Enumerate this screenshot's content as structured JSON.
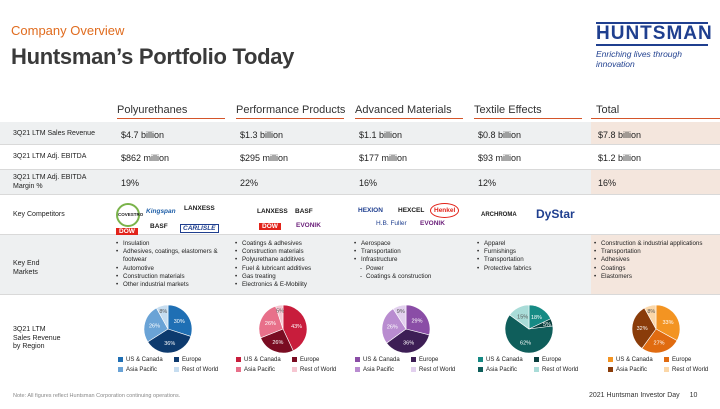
{
  "header": {
    "kicker": "Company Overview",
    "title": "Huntsman’s Portfolio Today"
  },
  "logo": {
    "word": "HUNTSMAN",
    "tagline": "Enriching lives through innovation"
  },
  "columns": [
    "Polyurethanes",
    "Performance Products",
    "Advanced Materials",
    "Textile Effects",
    "Total"
  ],
  "rows": {
    "sales": {
      "label": "3Q21 LTM Sales Revenue",
      "values": [
        "$4.7 billion",
        "$1.3 billion",
        "$1.1 billion",
        "$0.8 billion",
        "$7.8 billion"
      ]
    },
    "ebitda": {
      "label": "3Q21 LTM Adj. EBITDA",
      "values": [
        "$862 million",
        "$295 million",
        "$177 million",
        "$93 million",
        "$1.2 billion"
      ]
    },
    "margin": {
      "label1": "3Q21 LTM Adj. EBITDA",
      "label2": "Margin %",
      "values": [
        "19%",
        "22%",
        "16%",
        "12%",
        "16%"
      ]
    },
    "competitors": {
      "label": "Key Competitors"
    },
    "markets": {
      "label1": "Key End",
      "label2": "Markets"
    },
    "region": {
      "label1": "3Q21 LTM",
      "label2": "Sales Revenue",
      "label3": "by Region"
    }
  },
  "competitors": {
    "pu": [
      "COVESTRO",
      "Kingspan",
      "LANXESS",
      "BASF",
      "DOW",
      "CARLISLE"
    ],
    "pp": [
      "LANXESS",
      "BASF",
      "DOW",
      "EVONIK"
    ],
    "am": [
      "HEXION",
      "HEXCEL",
      "Henkel",
      "H.B. Fuller",
      "EVONIK"
    ],
    "te": [
      "ARCHROMA",
      "DyStar"
    ]
  },
  "markets": {
    "pu": [
      "Insulation",
      "Adhesives, coatings, elastomers & footwear",
      "Automotive",
      "Construction materials",
      "Other industrial markets"
    ],
    "pp": [
      "Coatings & adhesives",
      "Construction materials",
      "Polyurethane additives",
      "Fuel & lubricant additives",
      "Gas treating",
      "Electronics & E-Mobility"
    ],
    "am": [
      "Aerospace",
      "Transportation",
      "Infrastructure"
    ],
    "am_sub": [
      "Power",
      "Coatings & construction"
    ],
    "te": [
      "Apparel",
      "Furnishings",
      "Transportation",
      "Protective fabrics"
    ],
    "total": [
      "Construction & industrial applications",
      "Transportation",
      "Adhesives",
      "Coatings",
      "Elastomers"
    ]
  },
  "legend": [
    "US & Canada",
    "Europe",
    "Asia Pacific",
    "Rest of World"
  ],
  "chart_data": [
    {
      "type": "pie",
      "segment": "Polyurethanes",
      "labels": [
        "US & Canada",
        "Europe",
        "Asia Pacific",
        "Rest of World"
      ],
      "values": [
        30,
        36,
        26,
        8
      ],
      "colors": [
        "#1f6fb4",
        "#0d3a6e",
        "#6aa3d6",
        "#c6ddf0"
      ]
    },
    {
      "type": "pie",
      "segment": "Performance Products",
      "labels": [
        "US & Canada",
        "Europe",
        "Asia Pacific",
        "Rest of World"
      ],
      "values": [
        43,
        26,
        26,
        5
      ],
      "colors": [
        "#c81d3c",
        "#7a0c22",
        "#e8708a",
        "#f6c6d1"
      ]
    },
    {
      "type": "pie",
      "segment": "Advanced Materials",
      "labels": [
        "US & Canada",
        "Europe",
        "Asia Pacific",
        "Rest of World"
      ],
      "values": [
        29,
        36,
        26,
        9
      ],
      "colors": [
        "#8a4da6",
        "#3d1e55",
        "#b98cd0",
        "#e2d0ee"
      ]
    },
    {
      "type": "pie",
      "segment": "Textile Effects",
      "labels": [
        "US & Canada",
        "Europe",
        "Asia Pacific",
        "Rest of World"
      ],
      "values": [
        18,
        5,
        62,
        15
      ],
      "colors": [
        "#168a84",
        "#0a3f3e",
        "#0f5e5b",
        "#a9dcd8"
      ]
    },
    {
      "type": "pie",
      "segment": "Total",
      "labels": [
        "US & Canada",
        "Europe",
        "Asia Pacific",
        "Rest of World"
      ],
      "values": [
        33,
        27,
        32,
        8
      ],
      "colors": [
        "#f39422",
        "#e06b10",
        "#8a3c0a",
        "#fbd7a8"
      ]
    }
  ],
  "note": "Note: All figures reflect Huntsman Corporation continuing operations.",
  "footer": {
    "text": "2021 Huntsman Investor Day",
    "page": "10"
  }
}
